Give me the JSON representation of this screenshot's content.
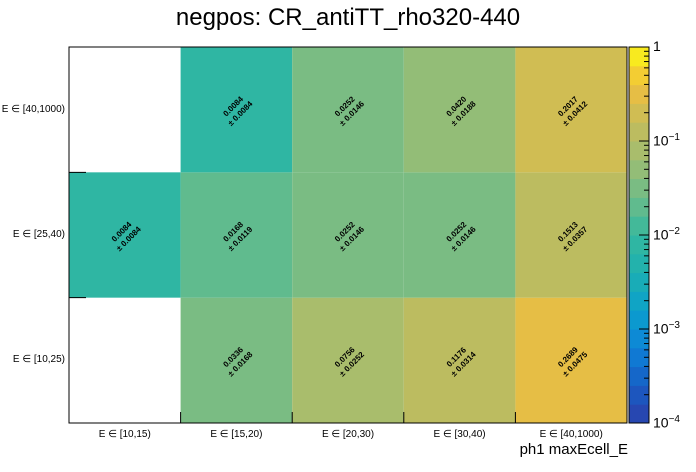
{
  "chart_data": {
    "type": "heatmap",
    "title": "negpos: CR_antiTT_rho320-440",
    "xlabel": "ph1 maxEcell_E",
    "ylabel": "",
    "x_categories": [
      "E ∈ [10,15)",
      "E ∈ [15,20)",
      "E ∈ [20,30)",
      "E ∈ [30,40)",
      "E ∈ [40,1000)"
    ],
    "y_categories": [
      "E ∈ [10,25)",
      "E ∈ [25,40)",
      "E ∈ [40,1000)"
    ],
    "z_scale": "log",
    "zlim": [
      0.0001,
      1
    ],
    "colorbar_ticks": [
      {
        "value": 1,
        "base": "1",
        "exp": ""
      },
      {
        "value": 0.1,
        "base": "10",
        "exp": "−1"
      },
      {
        "value": 0.01,
        "base": "10",
        "exp": "−2"
      },
      {
        "value": 0.001,
        "base": "10",
        "exp": "−3"
      },
      {
        "value": 0.0001,
        "base": "10",
        "exp": "−4"
      }
    ],
    "cells": [
      {
        "x": 1,
        "y": 0,
        "value": "0.0336",
        "error": "± 0.0168"
      },
      {
        "x": 2,
        "y": 0,
        "value": "0.0756",
        "error": "± 0.0252"
      },
      {
        "x": 3,
        "y": 0,
        "value": "0.1176",
        "error": "± 0.0314"
      },
      {
        "x": 4,
        "y": 0,
        "value": "0.2689",
        "error": "± 0.0475"
      },
      {
        "x": 0,
        "y": 1,
        "value": "0.0084",
        "error": "± 0.0084"
      },
      {
        "x": 1,
        "y": 1,
        "value": "0.0168",
        "error": "± 0.0119"
      },
      {
        "x": 2,
        "y": 1,
        "value": "0.0252",
        "error": "± 0.0146"
      },
      {
        "x": 3,
        "y": 1,
        "value": "0.0252",
        "error": "± 0.0146"
      },
      {
        "x": 4,
        "y": 1,
        "value": "0.1513",
        "error": "± 0.0357"
      },
      {
        "x": 1,
        "y": 2,
        "value": "0.0084",
        "error": "± 0.0084"
      },
      {
        "x": 2,
        "y": 2,
        "value": "0.0252",
        "error": "± 0.0146"
      },
      {
        "x": 3,
        "y": 2,
        "value": "0.0420",
        "error": "± 0.0188"
      },
      {
        "x": 4,
        "y": 2,
        "value": "0.2017",
        "error": "± 0.0412"
      }
    ]
  }
}
